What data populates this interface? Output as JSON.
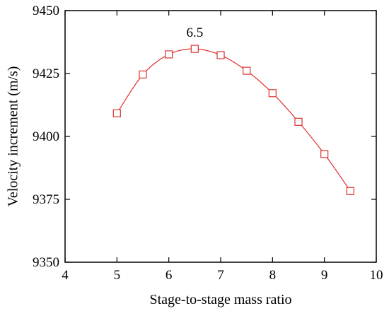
{
  "chart_data": {
    "type": "line",
    "title": "",
    "xlabel": "Stage-to-stage mass ratio",
    "ylabel": "Velocity increment (m/s)",
    "xlim": [
      4,
      10
    ],
    "ylim": [
      9350,
      9450
    ],
    "xticks": [
      4,
      5,
      6,
      7,
      8,
      9,
      10
    ],
    "yticks": [
      9350,
      9375,
      9400,
      9425,
      9450
    ],
    "grid": false,
    "legend": "none",
    "series": [
      {
        "color": "#e03030",
        "marker": "open-square",
        "x": [
          5,
          5.5,
          6,
          6.5,
          7,
          7.5,
          8,
          8.5,
          9,
          9.5
        ],
        "y": [
          9409.2,
          9424.6,
          9432.6,
          9434.8,
          9432.3,
          9426.1,
          9417.2,
          9405.8,
          9393.0,
          9378.3
        ]
      }
    ],
    "annotations": [
      {
        "text": "6.5",
        "x": 6.5,
        "y": 9434.8
      }
    ]
  }
}
